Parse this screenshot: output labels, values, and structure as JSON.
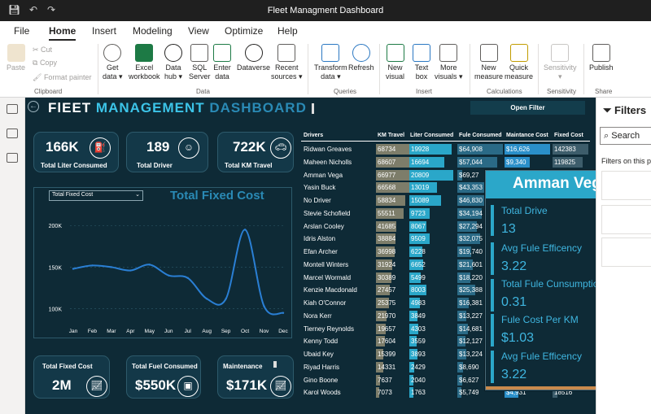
{
  "window": {
    "title": "Fleet Managment Dashboard"
  },
  "menu": [
    "File",
    "Home",
    "Insert",
    "Modeling",
    "View",
    "Optimize",
    "Help"
  ],
  "ribbon": {
    "paste": "Paste",
    "cut": "Cut",
    "copy": "Copy",
    "format_painter": "Format painter",
    "clipboard": "Clipboard",
    "get_data": [
      "Get",
      "data ▾"
    ],
    "excel": [
      "Excel",
      "workbook"
    ],
    "data_hub": [
      "Data",
      "hub ▾"
    ],
    "sql": [
      "SQL",
      "Server"
    ],
    "enter": [
      "Enter",
      "data"
    ],
    "dataverse": "Dataverse",
    "recent": [
      "Recent",
      "sources ▾"
    ],
    "data_group": "Data",
    "transform": [
      "Transform",
      "data ▾"
    ],
    "refresh": "Refresh",
    "queries_group": "Queries",
    "new_visual": [
      "New",
      "visual"
    ],
    "text_box": [
      "Text",
      "box"
    ],
    "more_visuals": [
      "More",
      "visuals ▾"
    ],
    "insert_group": "Insert",
    "new_measure": [
      "New",
      "measure"
    ],
    "quick_measure": [
      "Quick",
      "measure"
    ],
    "calc_group": "Calculations",
    "sensitivity": [
      "Sensitivity",
      "▾"
    ],
    "sens_group": "Sensitivity",
    "publish": "Publish",
    "share_group": "Share"
  },
  "dashboard": {
    "title_a": "FlEET",
    "title_b": "MANAGEMENT",
    "title_c": "DASHBOARD",
    "open_filter": "Open Filter",
    "kpi": [
      {
        "value": "166K",
        "label": "Total Liter Consumed"
      },
      {
        "value": "189",
        "label": "Total Driver"
      },
      {
        "value": "722K",
        "label": "Total KM Travel"
      }
    ],
    "bottom_kpi": [
      {
        "value": "2M",
        "label": "Total Fixed Cost"
      },
      {
        "value": "$550K",
        "label": "Total Fuel Consumed"
      },
      {
        "value": "$171K",
        "label": "Maintenance"
      }
    ],
    "dropdown": "Total Fixed Cost",
    "chart_title": "Total Fixed Cost"
  },
  "chart_data": {
    "type": "line",
    "title": "Total Fixed Cost",
    "categories": [
      "Jan",
      "Feb",
      "Mar",
      "Apr",
      "May",
      "Jun",
      "Jul",
      "Aug",
      "Sep",
      "Oct",
      "Nov",
      "Dec"
    ],
    "values": [
      148000,
      152000,
      150000,
      146000,
      153000,
      140000,
      137000,
      112000,
      112000,
      195000,
      103000,
      95000
    ],
    "ytick_labels": [
      "200K",
      "150K",
      "100K"
    ],
    "ytick_values": [
      200000,
      150000,
      100000
    ],
    "ylim": [
      85000,
      210000
    ],
    "line_color": "#2a7fd4"
  },
  "table": {
    "headers": [
      "Drivers",
      "KM Travel",
      "Liter Consumed",
      "Fule Consumed",
      "Maintance Cost",
      "Fixed Cost"
    ],
    "rows": [
      [
        "Ridwan Greaves",
        "68734",
        "19928",
        "$64,908",
        "$16,626",
        "142383"
      ],
      [
        "Maheen Nicholls",
        "68607",
        "16694",
        "$57,044",
        "$9,340",
        "119825"
      ],
      [
        "Amman Vega",
        "66977",
        "20809",
        "$69,27",
        "",
        " "
      ],
      [
        "Yasin Buck",
        "66568",
        "13019",
        "$43,353",
        "",
        ""
      ],
      [
        "No Driver",
        "58834",
        "15089",
        "$46,830",
        "",
        ""
      ],
      [
        "Stevie Schofield",
        "55511",
        "9723",
        "$34,194",
        "",
        ""
      ],
      [
        "Arslan Cooley",
        "41685",
        "8067",
        "$27,294",
        "",
        ""
      ],
      [
        "Idris Alston",
        "38884",
        "9509",
        "$32,075",
        "",
        ""
      ],
      [
        "Efan Archer",
        "36998",
        "6228",
        "$19,740",
        "",
        ""
      ],
      [
        "Montell Winters",
        "31924",
        "6652",
        "$21,601",
        "",
        ""
      ],
      [
        "Marcel Wormald",
        "30389",
        "5499",
        "$18,220",
        "",
        ""
      ],
      [
        "Kenzie Macdonald",
        "27457",
        "8003",
        "$25,388",
        "",
        ""
      ],
      [
        "Kiah O'Connor",
        "25375",
        "4983",
        "$16,381",
        "",
        ""
      ],
      [
        "Nora Kerr",
        "21970",
        "3849",
        "$13,227",
        "",
        ""
      ],
      [
        "Tierney Reynolds",
        "19657",
        "4303",
        "$14,681",
        "",
        ""
      ],
      [
        "Kenny Todd",
        "17604",
        "3559",
        "$12,127",
        "",
        ""
      ],
      [
        "Ubaid Key",
        "15399",
        "3893",
        "$13,224",
        "",
        ""
      ],
      [
        "Riyad Harris",
        "14331",
        "2429",
        "$8,690",
        "",
        ""
      ],
      [
        "Gino Boone",
        "7637",
        "2040",
        "$6,627",
        "",
        ""
      ],
      [
        "Karol Woods",
        "7073",
        "1763",
        "$5,749",
        "$4,931",
        "18516"
      ]
    ]
  },
  "tooltip": {
    "name": "Amman Vega",
    "items": [
      {
        "label": "Total Drive",
        "value": "13"
      },
      {
        "label": "Avg Fule Efficency",
        "value": "3.22"
      },
      {
        "label": "Total Fule Cunsumption per...",
        "value": "0.31"
      },
      {
        "label": "Fule Cost Per KM",
        "value": "$1.03"
      },
      {
        "label": "Avg Fule Efficency",
        "value": "3.22"
      }
    ]
  },
  "filters": {
    "title": "Filters",
    "search": "Search",
    "hint": "Filters on this pa"
  }
}
